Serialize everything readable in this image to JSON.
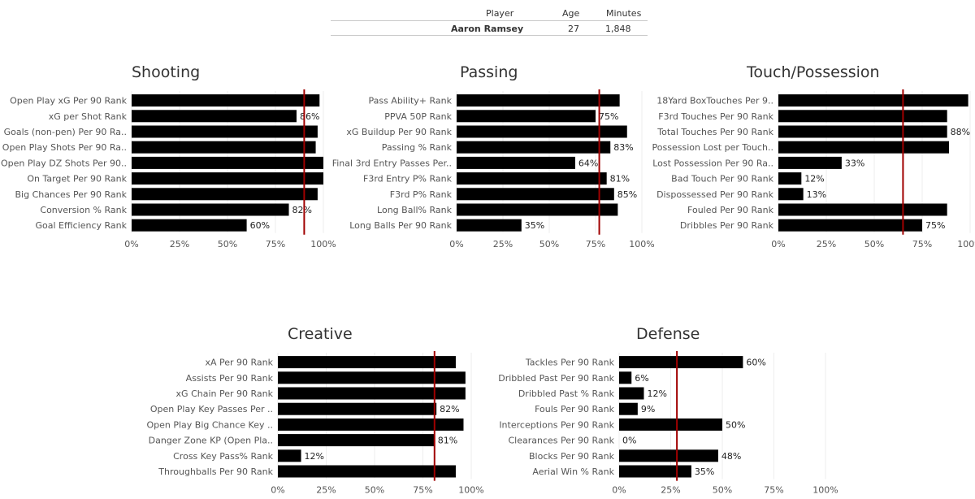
{
  "player_table": {
    "headers": [
      "Player",
      "Age",
      "Minutes"
    ],
    "row": [
      "Aaron Ramsey",
      "27",
      "1,848"
    ]
  },
  "colors": {
    "bar": "#000000",
    "reference_line": "#a00000",
    "grid": "#eeeeee",
    "label": "#555555",
    "value_label": "#222222"
  },
  "chart_data": [
    {
      "type": "bar",
      "orientation": "horizontal",
      "title": "Shooting",
      "categories": [
        "Open Play xG Per 90 Rank",
        "xG per Shot Rank",
        "Goals (non-pen) Per 90 Ra..",
        "Open Play Shots Per 90 Ra..",
        "Open Play DZ Shots Per 90..",
        "On Target Per 90 Rank",
        "Big Chances Per 90 Rank",
        "Conversion % Rank",
        "Goal Efficiency Rank"
      ],
      "values": [
        98,
        86,
        97,
        96,
        100,
        100,
        97,
        82,
        60
      ],
      "data_labels": [
        "",
        "86%",
        "",
        "",
        "",
        "",
        "",
        "82%",
        "60%"
      ],
      "reference_line": 90,
      "xlim": [
        0,
        100
      ],
      "xticks": [
        "0%",
        "25%",
        "50%",
        "75%",
        "100%"
      ]
    },
    {
      "type": "bar",
      "orientation": "horizontal",
      "title": "Passing",
      "categories": [
        "Pass Ability+ Rank",
        "PPVA 50P Rank",
        "xG Buildup Per 90 Rank",
        "Passing % Rank",
        "Final 3rd Entry Passes Per..",
        "F3rd Entry P% Rank",
        "F3rd P% Rank",
        "Long Ball% Rank",
        "Long Balls Per 90  Rank"
      ],
      "values": [
        88,
        75,
        92,
        83,
        64,
        81,
        85,
        87,
        35
      ],
      "data_labels": [
        "",
        "75%",
        "",
        "83%",
        "64%",
        "81%",
        "85%",
        "",
        "35%"
      ],
      "reference_line": 77,
      "xlim": [
        0,
        100
      ],
      "xticks": [
        "0%",
        "25%",
        "50%",
        "75%",
        "100%"
      ]
    },
    {
      "type": "bar",
      "orientation": "horizontal",
      "title": "Touch/Possession",
      "categories": [
        "18Yard BoxTouches Per 9..",
        "F3rd Touches Per 90 Rank",
        "Total Touches Per 90 Rank",
        "Possession Lost per Touch..",
        "Lost Possession Per 90 Ra..",
        "Bad Touch Per 90 Rank",
        "Dispossessed Per 90 Rank",
        "Fouled Per 90 Rank",
        "Dribbles Per 90 Rank"
      ],
      "values": [
        99,
        88,
        88,
        89,
        33,
        12,
        13,
        88,
        75
      ],
      "data_labels": [
        "",
        "",
        "88%",
        "",
        "33%",
        "12%",
        "13%",
        "",
        "75%"
      ],
      "reference_line": 65,
      "xlim": [
        0,
        100
      ],
      "xticks": [
        "0%",
        "25%",
        "50%",
        "75%",
        "100%"
      ]
    },
    {
      "type": "bar",
      "orientation": "horizontal",
      "title": "Creative",
      "categories": [
        "xA Per 90 Rank",
        "Assists Per 90 Rank",
        "xG Chain Per 90 Rank",
        "Open Play Key Passes Per ..",
        "Open Play Big Chance Key ..",
        "Danger Zone KP (Open Pla..",
        "Cross Key Pass% Rank",
        "Throughballs Per 90 Rank"
      ],
      "values": [
        92,
        97,
        97,
        82,
        96,
        81,
        12,
        92
      ],
      "data_labels": [
        "",
        "",
        "",
        "82%",
        "",
        "81%",
        "12%",
        ""
      ],
      "reference_line": 81,
      "xlim": [
        0,
        100
      ],
      "xticks": [
        "0%",
        "25%",
        "50%",
        "75%",
        "100%"
      ]
    },
    {
      "type": "bar",
      "orientation": "horizontal",
      "title": "Defense",
      "categories": [
        "Tackles Per 90 Rank",
        "Dribbled Past Per 90 Rank",
        "Dribbled Past % Rank",
        "Fouls Per 90 Rank",
        "Interceptions Per 90 Rank",
        "Clearances Per 90 Rank",
        "Blocks Per 90 Rank",
        "Aerial Win % Rank"
      ],
      "values": [
        60,
        6,
        12,
        9,
        50,
        0,
        48,
        35
      ],
      "data_labels": [
        "60%",
        "6%",
        "12%",
        "9%",
        "50%",
        "0%",
        "48%",
        "35%"
      ],
      "reference_line": 28,
      "xlim": [
        0,
        100
      ],
      "xticks": [
        "0%",
        "25%",
        "50%",
        "75%",
        "100%"
      ]
    }
  ]
}
